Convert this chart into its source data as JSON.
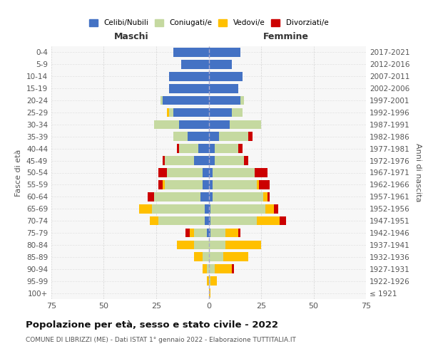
{
  "age_groups": [
    "100+",
    "95-99",
    "90-94",
    "85-89",
    "80-84",
    "75-79",
    "70-74",
    "65-69",
    "60-64",
    "55-59",
    "50-54",
    "45-49",
    "40-44",
    "35-39",
    "30-34",
    "25-29",
    "20-24",
    "15-19",
    "10-14",
    "5-9",
    "0-4"
  ],
  "birth_years": [
    "≤ 1921",
    "1922-1926",
    "1927-1931",
    "1932-1936",
    "1937-1941",
    "1942-1946",
    "1947-1951",
    "1952-1956",
    "1957-1961",
    "1962-1966",
    "1967-1971",
    "1972-1976",
    "1977-1981",
    "1982-1986",
    "1987-1991",
    "1992-1996",
    "1997-2001",
    "2002-2006",
    "2007-2011",
    "2012-2016",
    "2017-2021"
  ],
  "maschi": {
    "celibi": [
      0,
      0,
      0,
      0,
      0,
      1,
      2,
      2,
      4,
      3,
      3,
      7,
      5,
      10,
      14,
      17,
      22,
      19,
      19,
      13,
      17
    ],
    "coniugati": [
      0,
      0,
      1,
      3,
      7,
      6,
      22,
      25,
      22,
      18,
      17,
      14,
      9,
      7,
      12,
      2,
      1,
      0,
      0,
      0,
      0
    ],
    "vedovi": [
      0,
      1,
      2,
      4,
      8,
      2,
      4,
      6,
      0,
      1,
      0,
      0,
      0,
      0,
      0,
      1,
      0,
      0,
      0,
      0,
      0
    ],
    "divorziati": [
      0,
      0,
      0,
      0,
      0,
      2,
      0,
      0,
      3,
      2,
      4,
      1,
      1,
      0,
      0,
      0,
      0,
      0,
      0,
      0,
      0
    ]
  },
  "femmine": {
    "nubili": [
      0,
      0,
      0,
      0,
      0,
      1,
      1,
      1,
      2,
      2,
      2,
      3,
      3,
      5,
      10,
      11,
      15,
      14,
      16,
      11,
      15
    ],
    "coniugate": [
      0,
      1,
      3,
      7,
      8,
      7,
      22,
      26,
      24,
      21,
      20,
      14,
      11,
      14,
      15,
      5,
      2,
      0,
      0,
      0,
      0
    ],
    "vedove": [
      1,
      3,
      8,
      12,
      17,
      6,
      11,
      4,
      2,
      1,
      0,
      0,
      0,
      0,
      0,
      0,
      0,
      0,
      0,
      0,
      0
    ],
    "divorziate": [
      0,
      0,
      1,
      0,
      0,
      1,
      3,
      2,
      1,
      5,
      6,
      2,
      2,
      2,
      0,
      0,
      0,
      0,
      0,
      0,
      0
    ]
  },
  "colors": {
    "celibi": "#4472c4",
    "coniugati": "#c5d9a0",
    "vedovi": "#ffc000",
    "divorziati": "#cc0000"
  },
  "title": "Popolazione per età, sesso e stato civile - 2022",
  "subtitle": "COMUNE DI LIBRIZZI (ME) - Dati ISTAT 1° gennaio 2022 - Elaborazione TUTTITALIA.IT",
  "ylabel_left": "Fasce di età",
  "ylabel_right": "Anni di nascita",
  "xlabel_maschi": "Maschi",
  "xlabel_femmine": "Femmine",
  "xlim": 75,
  "legend_labels": [
    "Celibi/Nubili",
    "Coniugati/e",
    "Vedovi/e",
    "Divorziati/e"
  ],
  "background_color": "#ffffff",
  "plot_bg_color": "#f7f7f7",
  "grid_color": "#cccccc"
}
